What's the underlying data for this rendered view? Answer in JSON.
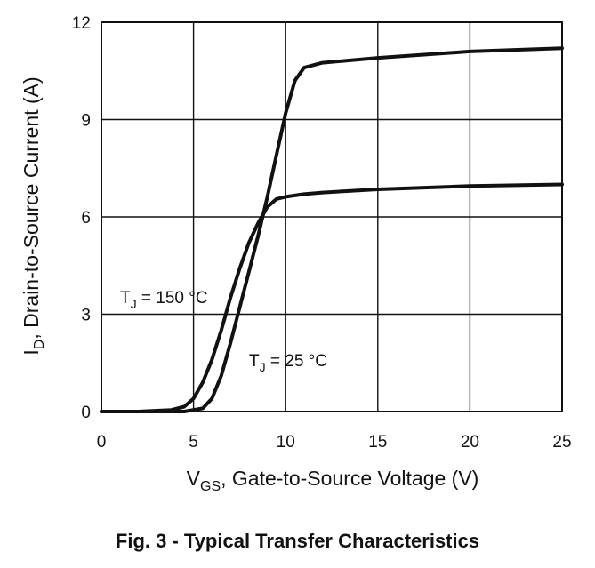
{
  "caption": "Fig. 3 - Typical Transfer Characteristics",
  "chart_data": {
    "type": "line",
    "title": "",
    "xlabel": {
      "main": "V",
      "sub": "GS",
      "rest": ", Gate-to-Source Voltage (V)"
    },
    "ylabel": {
      "main": "I",
      "sub": "D",
      "rest": ", Drain-to-Source Current (A)"
    },
    "xlim": [
      0,
      25
    ],
    "ylim": [
      0,
      12
    ],
    "xticks": [
      0,
      5,
      10,
      15,
      20,
      25
    ],
    "yticks": [
      0,
      3,
      6,
      9,
      12
    ],
    "grid": true,
    "legend": "none",
    "line_color": "#111111",
    "series": [
      {
        "label": {
          "main": "T",
          "sub": "J",
          "rest": " = 150 °C"
        },
        "x": [
          0,
          2,
          3.8,
          4.5,
          5,
          5.5,
          6,
          6.5,
          7,
          7.5,
          8,
          8.5,
          9,
          9.5,
          10,
          11,
          12,
          15,
          20,
          25
        ],
        "y": [
          0,
          0,
          0.05,
          0.15,
          0.4,
          0.9,
          1.6,
          2.5,
          3.5,
          4.4,
          5.2,
          5.8,
          6.3,
          6.55,
          6.62,
          6.7,
          6.75,
          6.85,
          6.95,
          7.0
        ]
      },
      {
        "label": {
          "main": "T",
          "sub": "J",
          "rest": " = 25 °C"
        },
        "x": [
          0,
          4.5,
          5.5,
          6,
          6.5,
          7,
          7.5,
          8,
          8.5,
          9,
          9.5,
          10,
          10.5,
          11,
          12,
          15,
          20,
          25
        ],
        "y": [
          0,
          0,
          0.1,
          0.4,
          1.1,
          2.1,
          3.2,
          4.3,
          5.4,
          6.6,
          7.9,
          9.2,
          10.2,
          10.6,
          10.75,
          10.9,
          11.1,
          11.2
        ]
      }
    ]
  }
}
